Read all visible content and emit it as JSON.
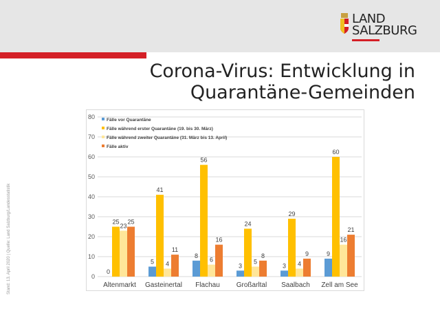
{
  "logo": {
    "line1": "LAND",
    "line2": "SALZBURG"
  },
  "title": {
    "line1": "Corona-Virus: Entwicklung in",
    "line2": "Quarantäne-Gemeinden"
  },
  "side_note": "Stand: 13. April 2020 | Quelle: Land Salzburg/Landesstatistik",
  "colors": {
    "vor": "#5b9bd5",
    "erste": "#ffc000",
    "zweite": "#ffe699",
    "aktiv": "#ed7d31",
    "red": "#d41f26"
  },
  "chart_data": {
    "type": "bar",
    "categories": [
      "Altenmarkt",
      "Gasteinertal",
      "Flachau",
      "Großarltal",
      "Saalbach",
      "Zell am See"
    ],
    "series": [
      {
        "name": "Fälle vor Quarantäne",
        "values": [
          0,
          5,
          8,
          3,
          3,
          9
        ]
      },
      {
        "name": "Fälle während erster Quarantäne (19. bis 30. März)",
        "values": [
          25,
          41,
          56,
          24,
          29,
          60
        ]
      },
      {
        "name": "Fälle während zweiter Quarantäne (31. März bis 13. April)",
        "values": [
          23,
          4,
          6,
          5,
          4,
          16
        ]
      },
      {
        "name": "Fälle aktiv",
        "values": [
          25,
          11,
          16,
          8,
          9,
          21
        ]
      }
    ],
    "yticks": [
      0,
      10,
      20,
      30,
      40,
      50,
      60,
      70,
      80
    ],
    "ylim": [
      0,
      80
    ],
    "grid": true,
    "legend": "top-left"
  }
}
